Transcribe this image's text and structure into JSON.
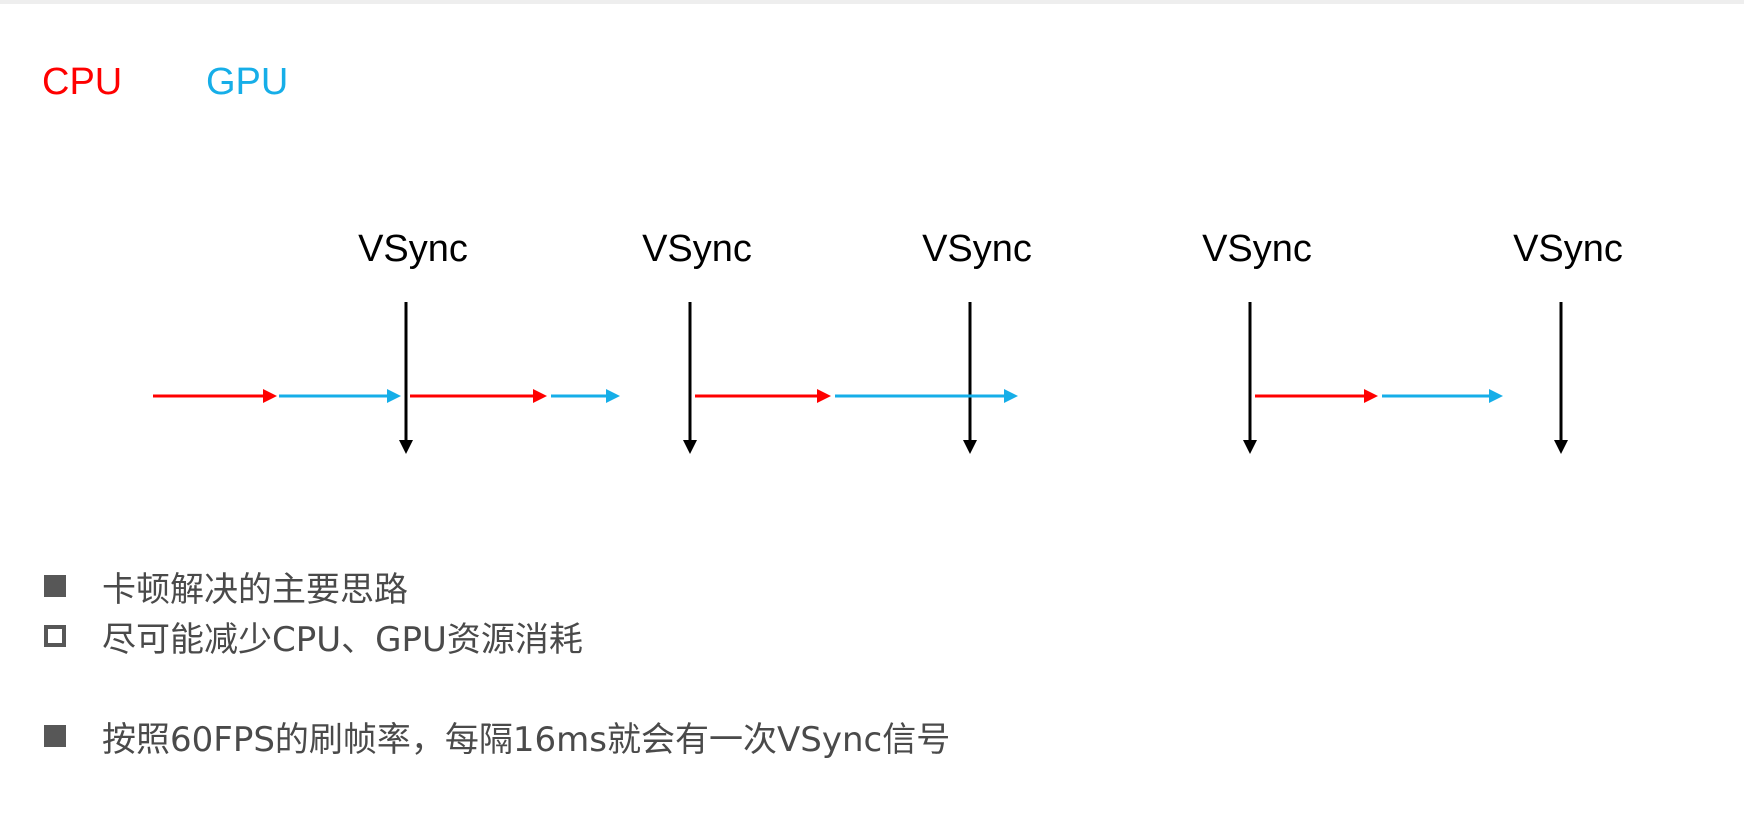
{
  "legend": {
    "cpu": "CPU",
    "gpu": "GPU"
  },
  "colors": {
    "cpu": "#ff0000",
    "gpu": "#16aee8",
    "vsync": "#000000",
    "bullet": "#575757",
    "text": "#4a4a4a"
  },
  "vsync_label": "VSync",
  "bullets": [
    {
      "style": "filled",
      "text": "卡顿解决的主要思路"
    },
    {
      "style": "hollow",
      "text": "尽可能减少CPU、GPU资源消耗"
    },
    {
      "style": "filled",
      "text": "按照60FPS的刷帧率，每隔16ms就会有一次VSync信号"
    }
  ]
}
